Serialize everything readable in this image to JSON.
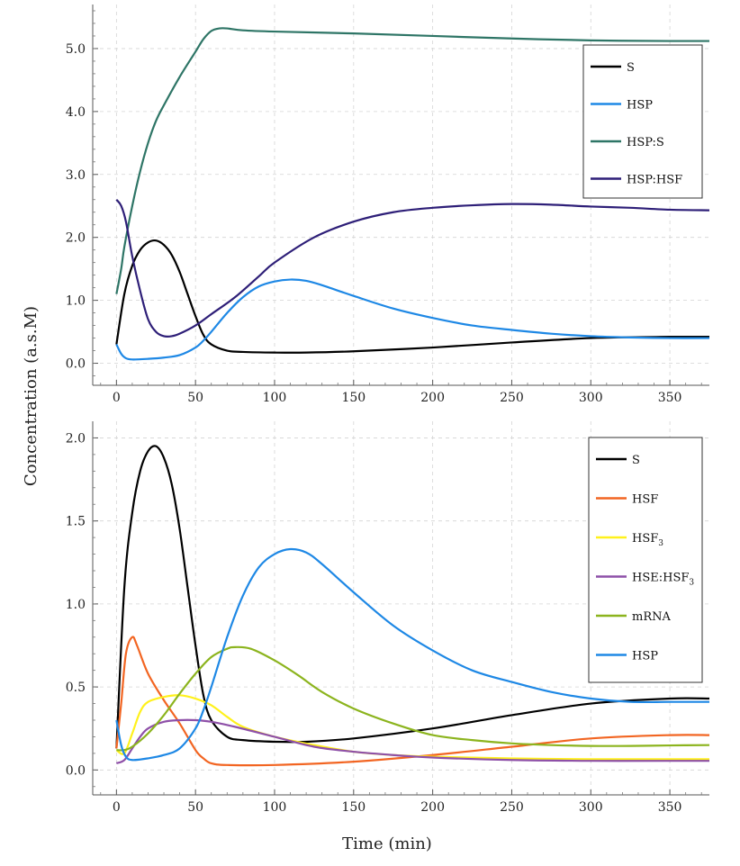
{
  "figure": {
    "ylabel": "Concentration (a.s.M)",
    "xlabel": "Time (min)"
  },
  "chart_data": [
    {
      "type": "line",
      "xlim": [
        -15,
        375
      ],
      "ylim": [
        -0.35,
        5.7
      ],
      "x_ticks": [
        0,
        50,
        100,
        150,
        200,
        250,
        300,
        350
      ],
      "y_ticks": [
        0.0,
        1.0,
        2.0,
        3.0,
        4.0,
        5.0
      ],
      "y_tick_labels": [
        "0.0",
        "1.0",
        "2.0",
        "3.0",
        "4.0",
        "5.0"
      ],
      "grid": true,
      "legend_position": "top-right",
      "series": [
        {
          "name": "S",
          "color": "#000000",
          "points": [
            [
              0,
              0.3
            ],
            [
              5,
              1.1
            ],
            [
              10,
              1.55
            ],
            [
              15,
              1.8
            ],
            [
              20,
              1.92
            ],
            [
              25,
              1.95
            ],
            [
              30,
              1.88
            ],
            [
              35,
              1.72
            ],
            [
              40,
              1.45
            ],
            [
              45,
              1.1
            ],
            [
              50,
              0.75
            ],
            [
              55,
              0.45
            ],
            [
              60,
              0.3
            ],
            [
              70,
              0.2
            ],
            [
              80,
              0.18
            ],
            [
              100,
              0.17
            ],
            [
              120,
              0.17
            ],
            [
              150,
              0.19
            ],
            [
              200,
              0.25
            ],
            [
              250,
              0.33
            ],
            [
              300,
              0.4
            ],
            [
              350,
              0.42
            ],
            [
              375,
              0.42
            ]
          ]
        },
        {
          "name": "HSP",
          "color": "#1E88E5",
          "points": [
            [
              0,
              0.3
            ],
            [
              3,
              0.15
            ],
            [
              6,
              0.08
            ],
            [
              10,
              0.06
            ],
            [
              20,
              0.07
            ],
            [
              30,
              0.09
            ],
            [
              40,
              0.13
            ],
            [
              50,
              0.25
            ],
            [
              55,
              0.36
            ],
            [
              60,
              0.5
            ],
            [
              70,
              0.8
            ],
            [
              80,
              1.05
            ],
            [
              90,
              1.22
            ],
            [
              100,
              1.3
            ],
            [
              110,
              1.33
            ],
            [
              120,
              1.31
            ],
            [
              130,
              1.24
            ],
            [
              150,
              1.07
            ],
            [
              175,
              0.87
            ],
            [
              200,
              0.72
            ],
            [
              225,
              0.6
            ],
            [
              250,
              0.53
            ],
            [
              275,
              0.47
            ],
            [
              300,
              0.43
            ],
            [
              325,
              0.41
            ],
            [
              350,
              0.4
            ],
            [
              375,
              0.4
            ]
          ]
        },
        {
          "name": "HSP:S",
          "color": "#2E7566",
          "points": [
            [
              0,
              1.1
            ],
            [
              3,
              1.5
            ],
            [
              5,
              1.85
            ],
            [
              10,
              2.5
            ],
            [
              15,
              3.05
            ],
            [
              20,
              3.5
            ],
            [
              25,
              3.85
            ],
            [
              30,
              4.1
            ],
            [
              40,
              4.55
            ],
            [
              50,
              4.95
            ],
            [
              55,
              5.15
            ],
            [
              60,
              5.28
            ],
            [
              65,
              5.32
            ],
            [
              70,
              5.32
            ],
            [
              80,
              5.29
            ],
            [
              100,
              5.27
            ],
            [
              150,
              5.24
            ],
            [
              200,
              5.2
            ],
            [
              250,
              5.16
            ],
            [
              300,
              5.13
            ],
            [
              350,
              5.12
            ],
            [
              375,
              5.12
            ]
          ]
        },
        {
          "name": "HSP:HSF",
          "color": "#2E1F78",
          "points": [
            [
              0,
              2.6
            ],
            [
              3,
              2.5
            ],
            [
              6,
              2.25
            ],
            [
              10,
              1.7
            ],
            [
              15,
              1.15
            ],
            [
              20,
              0.7
            ],
            [
              25,
              0.5
            ],
            [
              30,
              0.43
            ],
            [
              35,
              0.43
            ],
            [
              40,
              0.47
            ],
            [
              50,
              0.6
            ],
            [
              60,
              0.78
            ],
            [
              75,
              1.05
            ],
            [
              90,
              1.38
            ],
            [
              100,
              1.6
            ],
            [
              125,
              2.0
            ],
            [
              150,
              2.25
            ],
            [
              175,
              2.4
            ],
            [
              200,
              2.47
            ],
            [
              225,
              2.51
            ],
            [
              250,
              2.53
            ],
            [
              275,
              2.52
            ],
            [
              300,
              2.49
            ],
            [
              325,
              2.47
            ],
            [
              350,
              2.44
            ],
            [
              375,
              2.43
            ]
          ]
        }
      ]
    },
    {
      "type": "line",
      "xlim": [
        -15,
        375
      ],
      "ylim": [
        -0.15,
        2.1
      ],
      "x_ticks": [
        0,
        50,
        100,
        150,
        200,
        250,
        300,
        350
      ],
      "y_ticks": [
        0.0,
        0.5,
        1.0,
        1.5,
        2.0
      ],
      "y_tick_labels": [
        "0.0",
        "0.5",
        "1.0",
        "1.5",
        "2.0"
      ],
      "grid": true,
      "legend_position": "top-right",
      "series": [
        {
          "name": "S",
          "color": "#000000",
          "points": [
            [
              0,
              0.13
            ],
            [
              5,
              1.1
            ],
            [
              10,
              1.55
            ],
            [
              15,
              1.8
            ],
            [
              20,
              1.92
            ],
            [
              25,
              1.95
            ],
            [
              30,
              1.88
            ],
            [
              35,
              1.72
            ],
            [
              40,
              1.45
            ],
            [
              45,
              1.1
            ],
            [
              50,
              0.75
            ],
            [
              55,
              0.45
            ],
            [
              60,
              0.3
            ],
            [
              70,
              0.2
            ],
            [
              80,
              0.18
            ],
            [
              100,
              0.17
            ],
            [
              120,
              0.17
            ],
            [
              150,
              0.19
            ],
            [
              200,
              0.25
            ],
            [
              250,
              0.33
            ],
            [
              300,
              0.4
            ],
            [
              350,
              0.43
            ],
            [
              375,
              0.43
            ]
          ]
        },
        {
          "name": "HSF",
          "color": "#F26522",
          "points": [
            [
              0,
              0.13
            ],
            [
              3,
              0.4
            ],
            [
              6,
              0.7
            ],
            [
              10,
              0.8
            ],
            [
              13,
              0.75
            ],
            [
              20,
              0.58
            ],
            [
              30,
              0.42
            ],
            [
              40,
              0.28
            ],
            [
              50,
              0.12
            ],
            [
              55,
              0.07
            ],
            [
              60,
              0.04
            ],
            [
              70,
              0.03
            ],
            [
              100,
              0.03
            ],
            [
              150,
              0.05
            ],
            [
              200,
              0.09
            ],
            [
              250,
              0.14
            ],
            [
              300,
              0.19
            ],
            [
              350,
              0.21
            ],
            [
              375,
              0.21
            ]
          ]
        },
        {
          "name": "HSF3",
          "name_base": "HSF",
          "name_sub": "3",
          "color": "#FFF11C",
          "points": [
            [
              0,
              0.12
            ],
            [
              5,
              0.1
            ],
            [
              10,
              0.22
            ],
            [
              15,
              0.35
            ],
            [
              20,
              0.41
            ],
            [
              30,
              0.44
            ],
            [
              40,
              0.45
            ],
            [
              50,
              0.43
            ],
            [
              60,
              0.39
            ],
            [
              70,
              0.32
            ],
            [
              80,
              0.26
            ],
            [
              100,
              0.2
            ],
            [
              125,
              0.15
            ],
            [
              150,
              0.11
            ],
            [
              175,
              0.09
            ],
            [
              200,
              0.08
            ],
            [
              250,
              0.07
            ],
            [
              300,
              0.065
            ],
            [
              350,
              0.065
            ],
            [
              375,
              0.065
            ]
          ]
        },
        {
          "name": "HSE:HSF3",
          "name_base": "HSE:HSF",
          "name_sub": "3",
          "color": "#8E50A8",
          "points": [
            [
              0,
              0.04
            ],
            [
              5,
              0.06
            ],
            [
              10,
              0.13
            ],
            [
              15,
              0.2
            ],
            [
              20,
              0.25
            ],
            [
              30,
              0.29
            ],
            [
              40,
              0.3
            ],
            [
              50,
              0.3
            ],
            [
              60,
              0.29
            ],
            [
              75,
              0.26
            ],
            [
              100,
              0.2
            ],
            [
              125,
              0.14
            ],
            [
              150,
              0.11
            ],
            [
              175,
              0.09
            ],
            [
              200,
              0.075
            ],
            [
              250,
              0.06
            ],
            [
              300,
              0.055
            ],
            [
              350,
              0.055
            ],
            [
              375,
              0.055
            ]
          ]
        },
        {
          "name": "mRNA",
          "color": "#8CB41E",
          "points": [
            [
              0,
              0.12
            ],
            [
              5,
              0.12
            ],
            [
              10,
              0.14
            ],
            [
              20,
              0.22
            ],
            [
              30,
              0.33
            ],
            [
              40,
              0.46
            ],
            [
              50,
              0.58
            ],
            [
              60,
              0.68
            ],
            [
              70,
              0.73
            ],
            [
              75,
              0.74
            ],
            [
              85,
              0.73
            ],
            [
              100,
              0.66
            ],
            [
              115,
              0.57
            ],
            [
              130,
              0.47
            ],
            [
              150,
              0.37
            ],
            [
              175,
              0.28
            ],
            [
              200,
              0.21
            ],
            [
              225,
              0.18
            ],
            [
              250,
              0.16
            ],
            [
              275,
              0.15
            ],
            [
              300,
              0.145
            ],
            [
              325,
              0.145
            ],
            [
              350,
              0.148
            ],
            [
              375,
              0.15
            ]
          ]
        },
        {
          "name": "HSP",
          "color": "#1E88E5",
          "points": [
            [
              0,
              0.3
            ],
            [
              3,
              0.15
            ],
            [
              6,
              0.08
            ],
            [
              10,
              0.06
            ],
            [
              20,
              0.07
            ],
            [
              30,
              0.09
            ],
            [
              40,
              0.13
            ],
            [
              50,
              0.25
            ],
            [
              55,
              0.36
            ],
            [
              60,
              0.5
            ],
            [
              70,
              0.8
            ],
            [
              80,
              1.05
            ],
            [
              90,
              1.22
            ],
            [
              100,
              1.3
            ],
            [
              110,
              1.33
            ],
            [
              120,
              1.31
            ],
            [
              130,
              1.24
            ],
            [
              150,
              1.07
            ],
            [
              175,
              0.87
            ],
            [
              200,
              0.72
            ],
            [
              225,
              0.6
            ],
            [
              250,
              0.53
            ],
            [
              275,
              0.47
            ],
            [
              300,
              0.43
            ],
            [
              325,
              0.41
            ],
            [
              350,
              0.41
            ],
            [
              375,
              0.41
            ]
          ]
        }
      ]
    }
  ]
}
